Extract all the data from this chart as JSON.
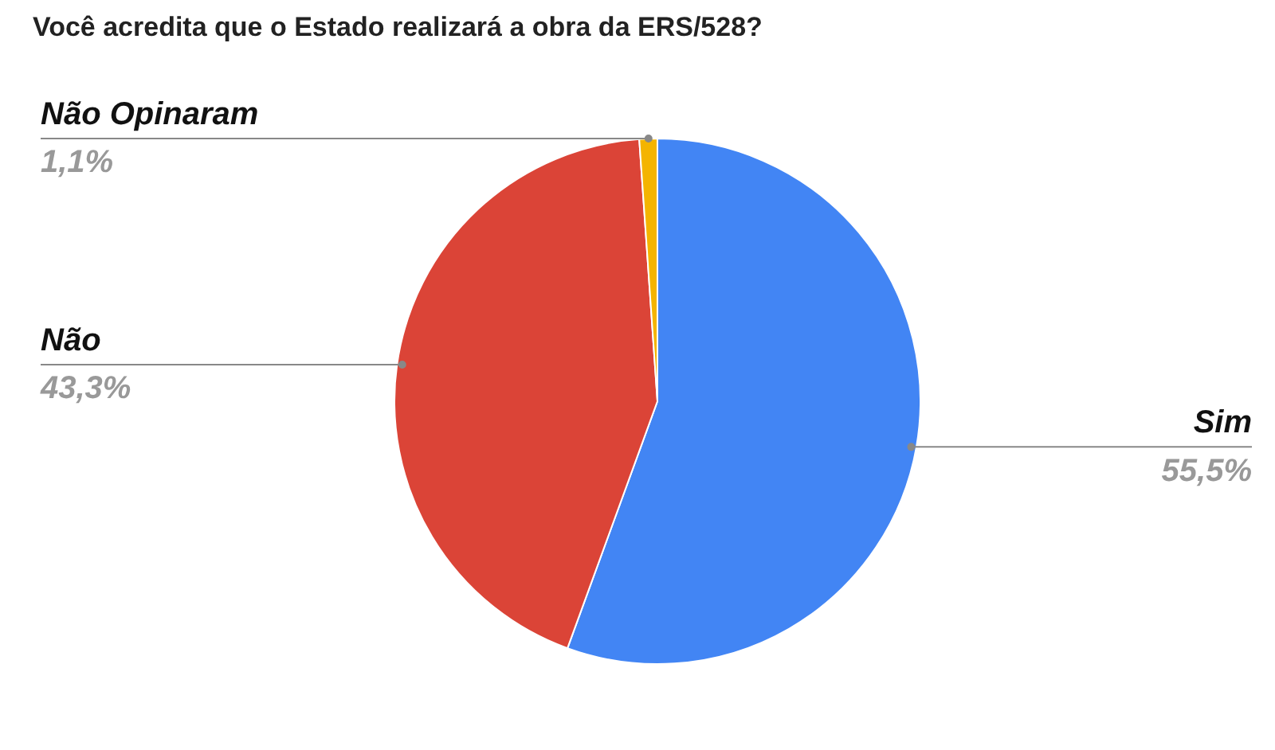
{
  "chart_data": {
    "type": "pie",
    "title": "Você acredita que o Estado realizará a obra da ERS/528?",
    "categories": [
      "Sim",
      "Não",
      "Não Opinaram"
    ],
    "values": [
      55.5,
      43.3,
      1.1
    ],
    "value_labels": [
      "55,5%",
      "43,3%",
      "1,1%"
    ],
    "colors": [
      "#4285f4",
      "#db4437",
      "#f4b400"
    ]
  }
}
